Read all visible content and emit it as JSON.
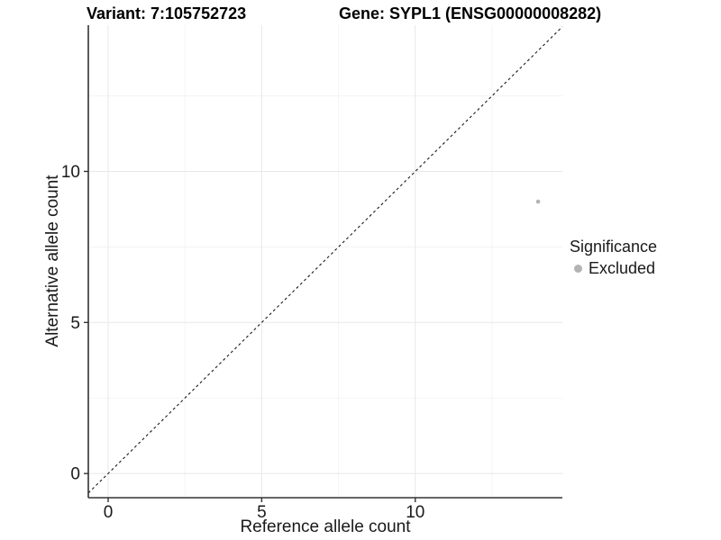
{
  "titles": {
    "variant": "Variant: 7:105752723",
    "gene": "Gene: SYPL1 (ENSG00000008282)"
  },
  "legend": {
    "title": "Significance",
    "items": [
      {
        "label": "Excluded",
        "color": "#b3b3b3"
      }
    ]
  },
  "chart_data": {
    "type": "scatter",
    "title": "Variant: 7:105752723 | Gene: SYPL1 (ENSG00000008282)",
    "xlabel": "Reference allele count",
    "ylabel": "Alternative allele count",
    "xlim": [
      -0.645,
      14.79
    ],
    "ylim": [
      -0.8,
      14.84
    ],
    "x_ticks": [
      0,
      5,
      10
    ],
    "y_ticks": [
      0,
      5,
      10
    ],
    "minor_ticks": [
      2.5,
      7.5,
      12.5
    ],
    "grid": "major+minor",
    "legend_position": "right",
    "series": [
      {
        "name": "Excluded",
        "points": [
          {
            "x": 14,
            "y": 9
          }
        ]
      }
    ],
    "abline": {
      "slope": 1,
      "intercept": 0,
      "style": "dashed"
    },
    "colors": {
      "excluded": "#b3b3b3",
      "axis_line": "#333333",
      "tick_text": "#1a1a1a",
      "grid_major": "#e8e8e8",
      "grid_minor": "#f3f3f3",
      "abline": "#1a1a1a",
      "background": "#ffffff"
    }
  }
}
